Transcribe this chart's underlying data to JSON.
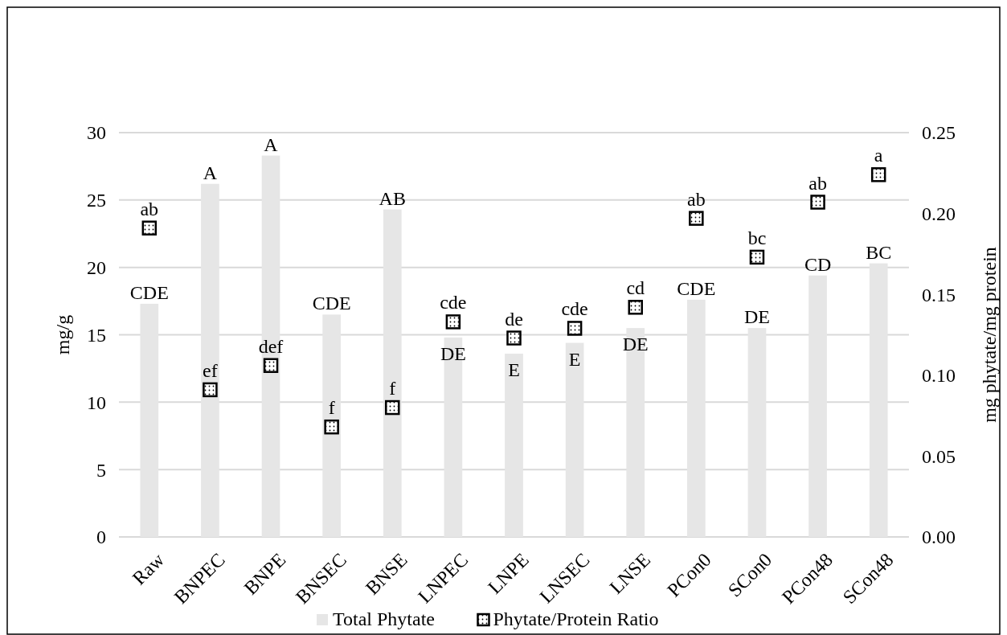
{
  "chart_data": {
    "type": "bar",
    "categories": [
      "Raw",
      "BNPEC",
      "BNPE",
      "BNSEC",
      "BNSE",
      "LNPEC",
      "LNPE",
      "LNSEC",
      "LNSE",
      "PCon0",
      "SCon0",
      "PCon48",
      "SCon48"
    ],
    "ylabel": "mg/g",
    "y2label": "mg phytate/mg protein",
    "ylim": [
      0,
      30
    ],
    "yticks": [
      0,
      5,
      10,
      15,
      20,
      25,
      30
    ],
    "y2lim": [
      0,
      0.25
    ],
    "y2ticks": [
      {
        "value": 0,
        "label": "0.00"
      },
      {
        "value": 0.05,
        "label": "0.05"
      },
      {
        "value": 0.1,
        "label": "0.10"
      },
      {
        "value": 0.15,
        "label": "0.15"
      },
      {
        "value": 0.2,
        "label": "0.20"
      },
      {
        "value": 0.25,
        "label": "0.25"
      }
    ],
    "grid": "y",
    "legend": "bottom",
    "marker": "square",
    "series": [
      {
        "name": "Total Phytate",
        "color": "#e6e6e6",
        "values": [
          17.3,
          26.2,
          28.3,
          16.5,
          24.3,
          14.8,
          13.6,
          14.4,
          15.5,
          17.6,
          15.5,
          19.4,
          20.3
        ],
        "value_labels": [
          "CDE",
          "A",
          "A",
          "CDE",
          "AB",
          "DE",
          "E",
          "E",
          "DE",
          "CDE",
          "DE",
          "CD",
          "BC"
        ]
      },
      {
        "name": "Phytate/Protein Ratio",
        "type": "scatter",
        "axis": "y2",
        "color": "#000000",
        "values": [
          0.191,
          0.091,
          0.106,
          0.068,
          0.08,
          0.133,
          0.123,
          0.129,
          0.142,
          0.197,
          0.173,
          0.207,
          0.224
        ],
        "value_labels": [
          "ab",
          "ef",
          "def",
          "f",
          "f",
          "cde",
          "de",
          "cde",
          "cd",
          "ab",
          "bc",
          "ab",
          "a"
        ]
      }
    ]
  }
}
